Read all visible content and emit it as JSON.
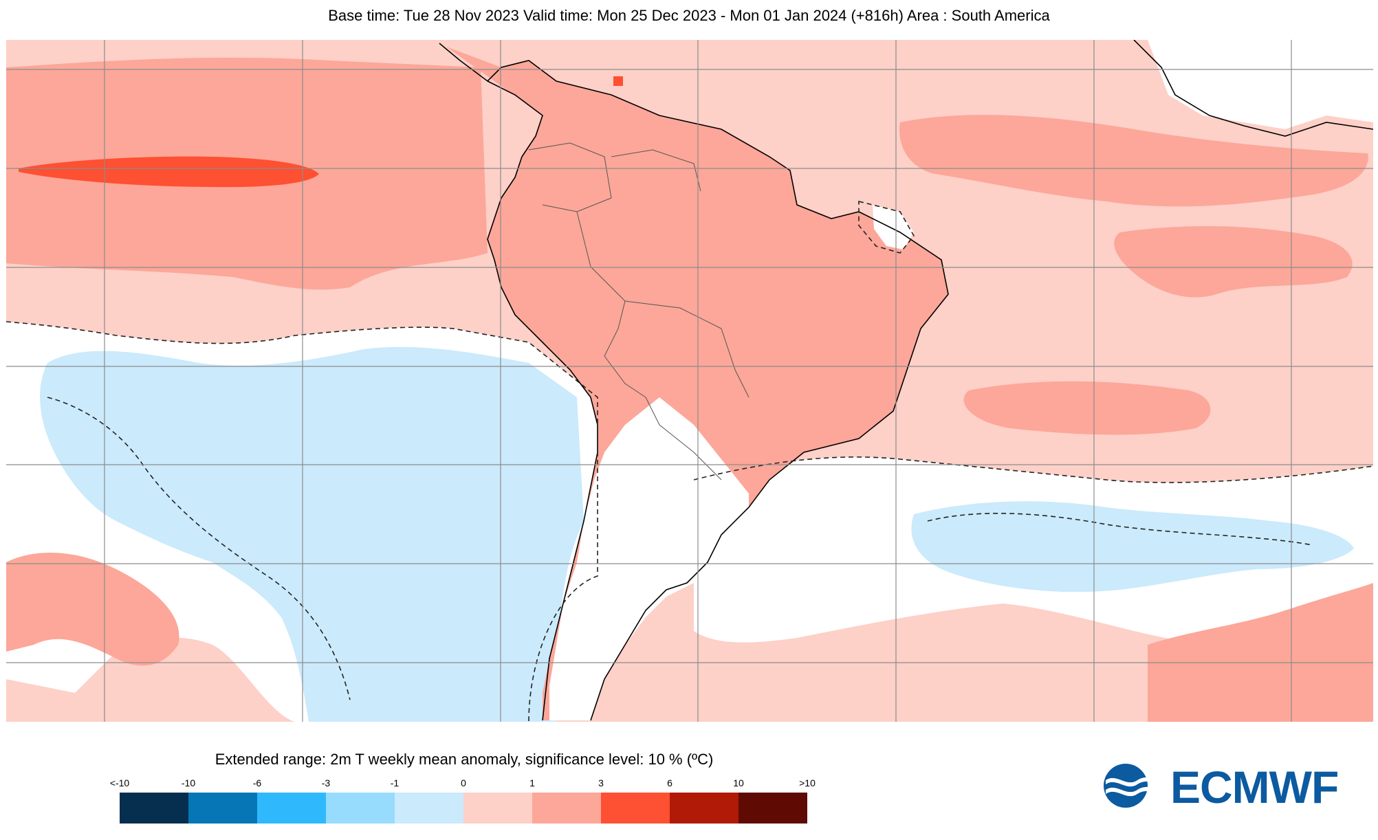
{
  "header": {
    "title": "Base time: Tue 28 Nov 2023 Valid time: Mon 25 Dec 2023 - Mon 01 Jan 2024 (+816h) Area : South America"
  },
  "map": {
    "area": "South America",
    "colors": {
      "land_fill": "#fca799",
      "ocean_warm": "#fdd0c8",
      "warm_band": "#fca799",
      "hot_core": "#fe5032",
      "cool": "#cbeafc",
      "neutral": "#ffffff",
      "grid": "#8c8c8c",
      "coastline": "#000000",
      "borders": "#555555"
    }
  },
  "legend": {
    "title": "Extended range: 2m T weekly mean anomaly, significance level: 10 % (ºC)",
    "ticks": [
      "<-10",
      "-10",
      "-6",
      "-3",
      "-1",
      "0",
      "1",
      "3",
      "6",
      "10",
      ">10"
    ],
    "bins": [
      {
        "from": "<-10",
        "to": "-10",
        "color": "#062f4f"
      },
      {
        "from": "-10",
        "to": "-6",
        "color": "#0676b6"
      },
      {
        "from": "-6",
        "to": "-3",
        "color": "#2fb9fc"
      },
      {
        "from": "-3",
        "to": "-1",
        "color": "#97dbfd"
      },
      {
        "from": "-1",
        "to": "0",
        "color": "#cbeafc"
      },
      {
        "from": "0",
        "to": "1",
        "color": "#fdd0c8"
      },
      {
        "from": "1",
        "to": "3",
        "color": "#fca799"
      },
      {
        "from": "3",
        "to": "6",
        "color": "#fe5032"
      },
      {
        "from": "6",
        "to": "10",
        "color": "#b01a06"
      },
      {
        "from": "10",
        "to": ">10",
        "color": "#5f0a03"
      }
    ]
  },
  "logo": {
    "text": "ECMWF",
    "color": "#0c5aa0",
    "icon": "ecmwf-waves-icon"
  }
}
